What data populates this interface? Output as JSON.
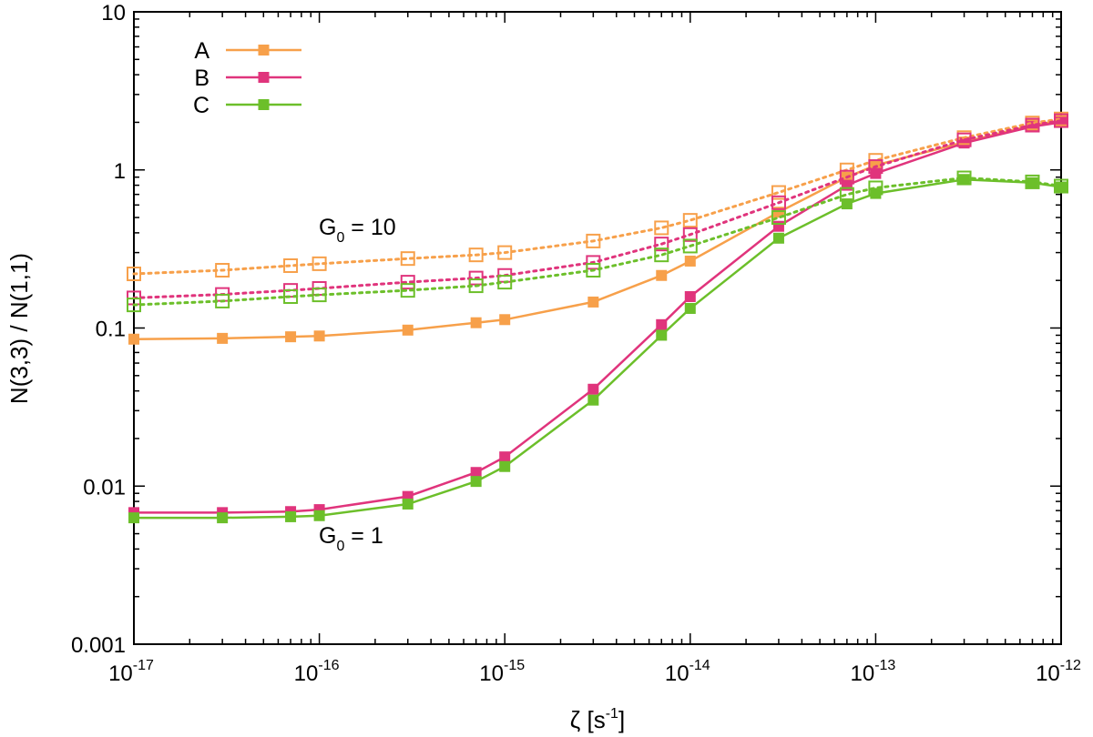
{
  "chart_data": {
    "type": "line",
    "xscale": "log",
    "yscale": "log",
    "xlim": [
      1e-17,
      1e-12
    ],
    "ylim": [
      0.001,
      10
    ],
    "xlabel": {
      "main": "ζ  [s",
      "sup": "-1",
      "tail": "]"
    },
    "ylabel": "N(3,3) / N(1,1)",
    "x_ticks": [
      {
        "value": 1e-17,
        "base": "10",
        "exp": "-17"
      },
      {
        "value": 1e-16,
        "base": "10",
        "exp": "-16"
      },
      {
        "value": 1e-15,
        "base": "10",
        "exp": "-15"
      },
      {
        "value": 1e-14,
        "base": "10",
        "exp": "-14"
      },
      {
        "value": 1e-13,
        "base": "10",
        "exp": "-13"
      },
      {
        "value": 1e-12,
        "base": "10",
        "exp": "-12"
      }
    ],
    "y_ticks": [
      {
        "value": 0.001,
        "label": "0.001"
      },
      {
        "value": 0.01,
        "label": "0.01"
      },
      {
        "value": 0.1,
        "label": "0.1"
      },
      {
        "value": 1,
        "label": "1"
      },
      {
        "value": 10,
        "label": "10"
      }
    ],
    "x": [
      1e-17,
      3e-17,
      7e-17,
      1e-16,
      3e-16,
      7e-16,
      1e-15,
      3e-15,
      7e-15,
      1e-14,
      3e-14,
      7e-14,
      1e-13,
      3e-13,
      7e-13,
      1e-12
    ],
    "series": [
      {
        "name": "A",
        "case": "G0 = 1",
        "color": "#f7a04a",
        "style": "solid",
        "marker": "filled-square",
        "values": [
          0.085,
          0.086,
          0.088,
          0.089,
          0.097,
          0.108,
          0.113,
          0.146,
          0.215,
          0.265,
          0.54,
          0.9,
          1.07,
          1.5,
          1.92,
          2.05
        ]
      },
      {
        "name": "B",
        "case": "G0 = 1",
        "color": "#e0347c",
        "style": "solid",
        "marker": "filled-square",
        "values": [
          0.0068,
          0.0068,
          0.0069,
          0.0071,
          0.0086,
          0.0122,
          0.0153,
          0.041,
          0.105,
          0.158,
          0.44,
          0.8,
          0.95,
          1.48,
          1.88,
          2.0
        ]
      },
      {
        "name": "C",
        "case": "G0 = 1",
        "color": "#6cbf2a",
        "style": "solid",
        "marker": "filled-square",
        "values": [
          0.0063,
          0.0063,
          0.0064,
          0.0065,
          0.0077,
          0.0107,
          0.0133,
          0.035,
          0.09,
          0.133,
          0.37,
          0.61,
          0.71,
          0.87,
          0.83,
          0.78
        ]
      },
      {
        "name": "A",
        "case": "G0 = 10",
        "color": "#f7a04a",
        "style": "dotted",
        "marker": "open-square",
        "values": [
          0.22,
          0.232,
          0.248,
          0.255,
          0.275,
          0.29,
          0.3,
          0.355,
          0.43,
          0.48,
          0.72,
          1.0,
          1.15,
          1.6,
          1.98,
          2.1
        ]
      },
      {
        "name": "B",
        "case": "G0 = 10",
        "color": "#e0347c",
        "style": "dotted",
        "marker": "open-square",
        "values": [
          0.155,
          0.163,
          0.173,
          0.178,
          0.195,
          0.207,
          0.215,
          0.26,
          0.34,
          0.39,
          0.62,
          0.9,
          1.05,
          1.55,
          1.92,
          2.05
        ]
      },
      {
        "name": "C",
        "case": "G0 = 10",
        "color": "#6cbf2a",
        "style": "dotted",
        "marker": "open-square",
        "values": [
          0.14,
          0.148,
          0.158,
          0.162,
          0.173,
          0.185,
          0.195,
          0.232,
          0.29,
          0.33,
          0.5,
          0.7,
          0.77,
          0.89,
          0.84,
          0.79
        ]
      }
    ],
    "legend": {
      "placement": "top-left",
      "entries": [
        {
          "label": "A",
          "color": "#f7a04a"
        },
        {
          "label": "B",
          "color": "#e0347c"
        },
        {
          "label": "C",
          "color": "#6cbf2a"
        }
      ]
    },
    "annotations": [
      {
        "id": "g10",
        "text": "G",
        "sub": "0",
        "tail": " = 10",
        "at_x": 3e-17,
        "at_y": 0.36
      },
      {
        "id": "g1",
        "text": "G",
        "sub": "0",
        "tail": " = 1",
        "at_x": 3e-16,
        "at_y": 0.0036
      }
    ]
  }
}
